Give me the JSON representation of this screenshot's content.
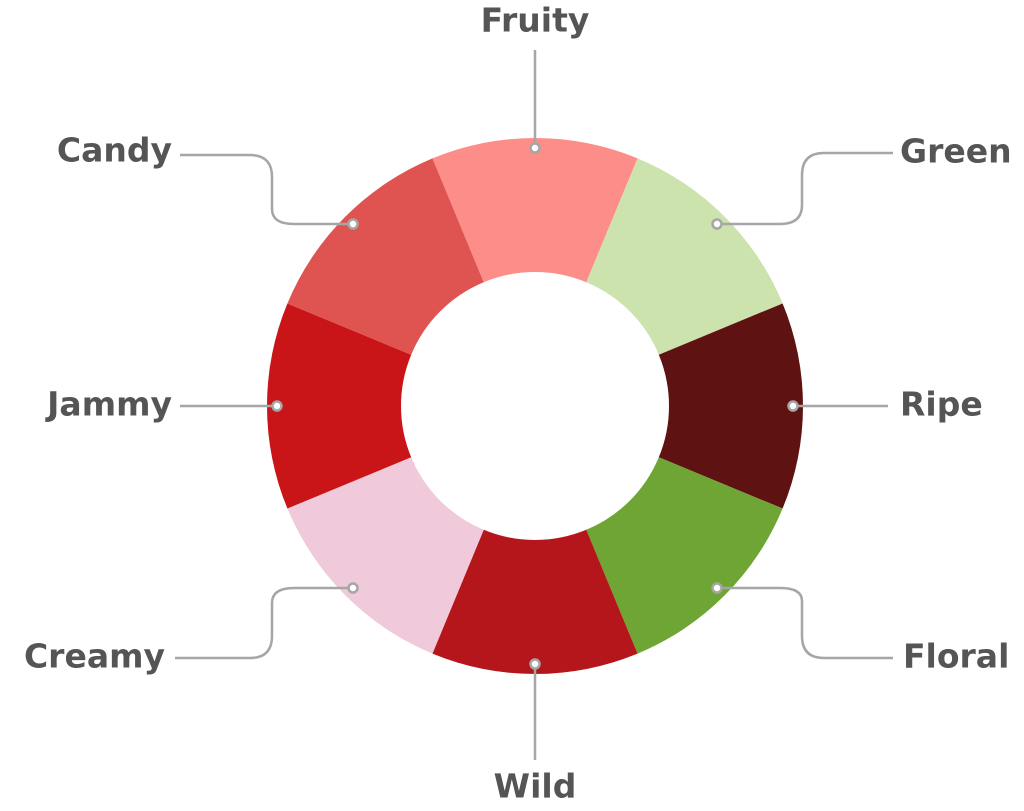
{
  "chart_data": {
    "type": "donut",
    "categories": [
      "Fruity",
      "Green",
      "Ripe",
      "Floral",
      "Wild",
      "Creamy",
      "Jammy",
      "Candy"
    ],
    "values": [
      12.5,
      12.5,
      12.5,
      12.5,
      12.5,
      12.5,
      12.5,
      12.5
    ],
    "colors": [
      "#fc8d89",
      "#cce3ad",
      "#5f1212",
      "#6ea534",
      "#b5161c",
      "#f0cada",
      "#c91517",
      "#df5350"
    ]
  }
}
